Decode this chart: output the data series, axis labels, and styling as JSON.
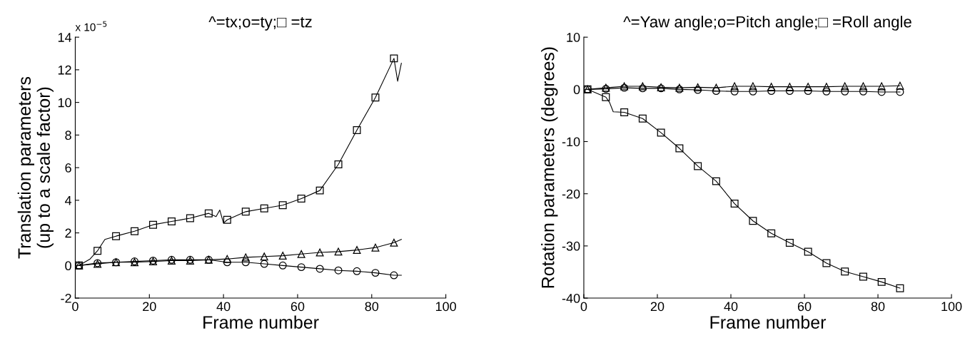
{
  "chart_data": [
    {
      "type": "line",
      "title": "^=tx;o=ty;□ =tz",
      "xlabel": "Frame number",
      "ylabel": "Translation parameters\n(up to a scale factor)",
      "annotations": [
        "x 10$^{−5}$"
      ],
      "xlim": [
        0,
        100
      ],
      "xticks": [
        0,
        20,
        40,
        60,
        80,
        100
      ],
      "ylim": [
        -2,
        14
      ],
      "yticks": [
        -2,
        0,
        2,
        4,
        6,
        8,
        10,
        12,
        14
      ],
      "grid": false,
      "series": [
        {
          "color": "#000000",
          "marker": "none",
          "x": [
            1,
            4,
            6,
            8,
            11,
            16,
            21,
            26,
            31,
            36,
            38,
            39,
            40,
            41,
            46,
            51,
            56,
            61,
            66,
            71,
            76,
            81,
            86,
            87,
            88
          ],
          "values": [
            0,
            0.4,
            0.9,
            1.6,
            1.8,
            2.1,
            2.5,
            2.7,
            2.9,
            3.2,
            3.0,
            3.4,
            2.6,
            2.8,
            3.3,
            3.5,
            3.7,
            4.1,
            4.6,
            6.2,
            8.3,
            10.3,
            12.7,
            11.3,
            12.4
          ]
        },
        {
          "color": "#000000",
          "marker": "none",
          "x": [
            1,
            6,
            11,
            16,
            21,
            26,
            31,
            36,
            41,
            46,
            51,
            56,
            61,
            66,
            71,
            76,
            81,
            86,
            88
          ],
          "values": [
            0,
            0.1,
            0.2,
            0.2,
            0.25,
            0.3,
            0.3,
            0.35,
            0.4,
            0.5,
            0.55,
            0.6,
            0.7,
            0.8,
            0.85,
            0.95,
            1.1,
            1.4,
            1.6
          ]
        },
        {
          "color": "#000000",
          "marker": "none",
          "x": [
            1,
            6,
            11,
            16,
            21,
            26,
            31,
            36,
            41,
            46,
            51,
            56,
            61,
            66,
            71,
            76,
            81,
            86,
            88
          ],
          "values": [
            0,
            0.15,
            0.2,
            0.25,
            0.3,
            0.35,
            0.35,
            0.35,
            0.2,
            0.2,
            0.1,
            0,
            -0.1,
            -0.2,
            -0.3,
            -0.35,
            -0.45,
            -0.6,
            -0.6
          ]
        },
        {
          "type": "scatter",
          "color": "#000000",
          "marker": "square",
          "x": [
            1,
            6,
            11,
            16,
            21,
            26,
            31,
            36,
            41,
            46,
            51,
            56,
            61,
            66,
            71,
            76,
            81,
            86
          ],
          "values": [
            0,
            0.9,
            1.8,
            2.1,
            2.5,
            2.7,
            2.9,
            3.2,
            2.8,
            3.3,
            3.5,
            3.7,
            4.1,
            4.6,
            6.2,
            8.3,
            10.3,
            12.7
          ]
        },
        {
          "type": "scatter",
          "color": "#000000",
          "marker": "triangle",
          "x": [
            1,
            6,
            11,
            16,
            21,
            26,
            31,
            36,
            41,
            46,
            51,
            56,
            61,
            66,
            71,
            76,
            81,
            86
          ],
          "values": [
            0,
            0.1,
            0.2,
            0.2,
            0.25,
            0.3,
            0.3,
            0.35,
            0.4,
            0.5,
            0.55,
            0.6,
            0.7,
            0.8,
            0.85,
            0.95,
            1.1,
            1.4
          ]
        },
        {
          "type": "scatter",
          "color": "#000000",
          "marker": "circle",
          "x": [
            1,
            6,
            11,
            16,
            21,
            26,
            31,
            36,
            41,
            46,
            51,
            56,
            61,
            66,
            71,
            76,
            81,
            86
          ],
          "values": [
            0,
            0.15,
            0.2,
            0.25,
            0.3,
            0.35,
            0.35,
            0.35,
            0.2,
            0.2,
            0.1,
            0,
            -0.1,
            -0.2,
            -0.3,
            -0.35,
            -0.45,
            -0.6
          ]
        }
      ]
    },
    {
      "type": "line",
      "title": "^=Yaw angle;o=Pitch angle;□ =Roll angle",
      "xlabel": "Frame number",
      "ylabel": "Rotation parameters (degrees)",
      "xlim": [
        0,
        100
      ],
      "xticks": [
        0,
        20,
        40,
        60,
        80,
        100
      ],
      "ylim": [
        -40,
        10
      ],
      "yticks": [
        -40,
        -30,
        -20,
        -10,
        0,
        10
      ],
      "grid": false,
      "series": [
        {
          "color": "#000000",
          "marker": "none",
          "x": [
            1,
            6,
            7,
            8,
            11,
            16,
            21,
            26,
            31,
            36,
            41,
            46,
            51,
            56,
            61,
            66,
            71,
            76,
            81,
            86
          ],
          "values": [
            0,
            -1.5,
            -2.5,
            -4.3,
            -4.4,
            -5.6,
            -8.3,
            -11.3,
            -14.7,
            -17.6,
            -21.9,
            -25.2,
            -27.6,
            -29.4,
            -31.1,
            -33.3,
            -34.9,
            -35.9,
            -36.9,
            -38.1
          ]
        },
        {
          "color": "#000000",
          "marker": "none",
          "x": [
            1,
            6,
            11,
            16,
            21,
            26,
            31,
            36,
            41,
            46,
            51,
            56,
            61,
            66,
            71,
            76,
            81,
            86
          ],
          "values": [
            0,
            0.3,
            0.6,
            0.6,
            0.4,
            0.3,
            0.4,
            0.3,
            0.6,
            0.6,
            0.5,
            0.5,
            0.5,
            0.5,
            0.6,
            0.6,
            0.6,
            0.7
          ]
        },
        {
          "color": "#000000",
          "marker": "none",
          "x": [
            1,
            6,
            11,
            16,
            21,
            26,
            31,
            36,
            41,
            46,
            51,
            56,
            61,
            66,
            71,
            76,
            81,
            86
          ],
          "values": [
            0,
            0.1,
            0.3,
            0.2,
            0.2,
            0,
            -0.1,
            -0.3,
            -0.4,
            -0.4,
            -0.3,
            -0.3,
            -0.3,
            -0.4,
            -0.4,
            -0.4,
            -0.5,
            -0.5
          ]
        },
        {
          "type": "scatter",
          "color": "#000000",
          "marker": "square",
          "x": [
            1,
            6,
            11,
            16,
            21,
            26,
            31,
            36,
            41,
            46,
            51,
            56,
            61,
            66,
            71,
            76,
            81,
            86
          ],
          "values": [
            0,
            -1.5,
            -4.4,
            -5.6,
            -8.3,
            -11.3,
            -14.7,
            -17.6,
            -21.9,
            -25.2,
            -27.6,
            -29.4,
            -31.1,
            -33.3,
            -34.9,
            -35.9,
            -36.9,
            -38.1
          ]
        },
        {
          "type": "scatter",
          "color": "#000000",
          "marker": "triangle",
          "x": [
            1,
            6,
            11,
            16,
            21,
            26,
            31,
            36,
            41,
            46,
            51,
            56,
            61,
            66,
            71,
            76,
            81,
            86
          ],
          "values": [
            0,
            0.3,
            0.6,
            0.6,
            0.4,
            0.3,
            0.4,
            0.3,
            0.6,
            0.6,
            0.5,
            0.5,
            0.5,
            0.5,
            0.6,
            0.6,
            0.6,
            0.7
          ]
        },
        {
          "type": "scatter",
          "color": "#000000",
          "marker": "circle",
          "x": [
            1,
            6,
            11,
            16,
            21,
            26,
            31,
            36,
            41,
            46,
            51,
            56,
            61,
            66,
            71,
            76,
            81,
            86
          ],
          "values": [
            0,
            0.1,
            0.3,
            0.2,
            0.2,
            0,
            -0.1,
            -0.3,
            -0.4,
            -0.4,
            -0.3,
            -0.3,
            -0.3,
            -0.4,
            -0.4,
            -0.4,
            -0.5,
            -0.5
          ]
        }
      ]
    }
  ]
}
